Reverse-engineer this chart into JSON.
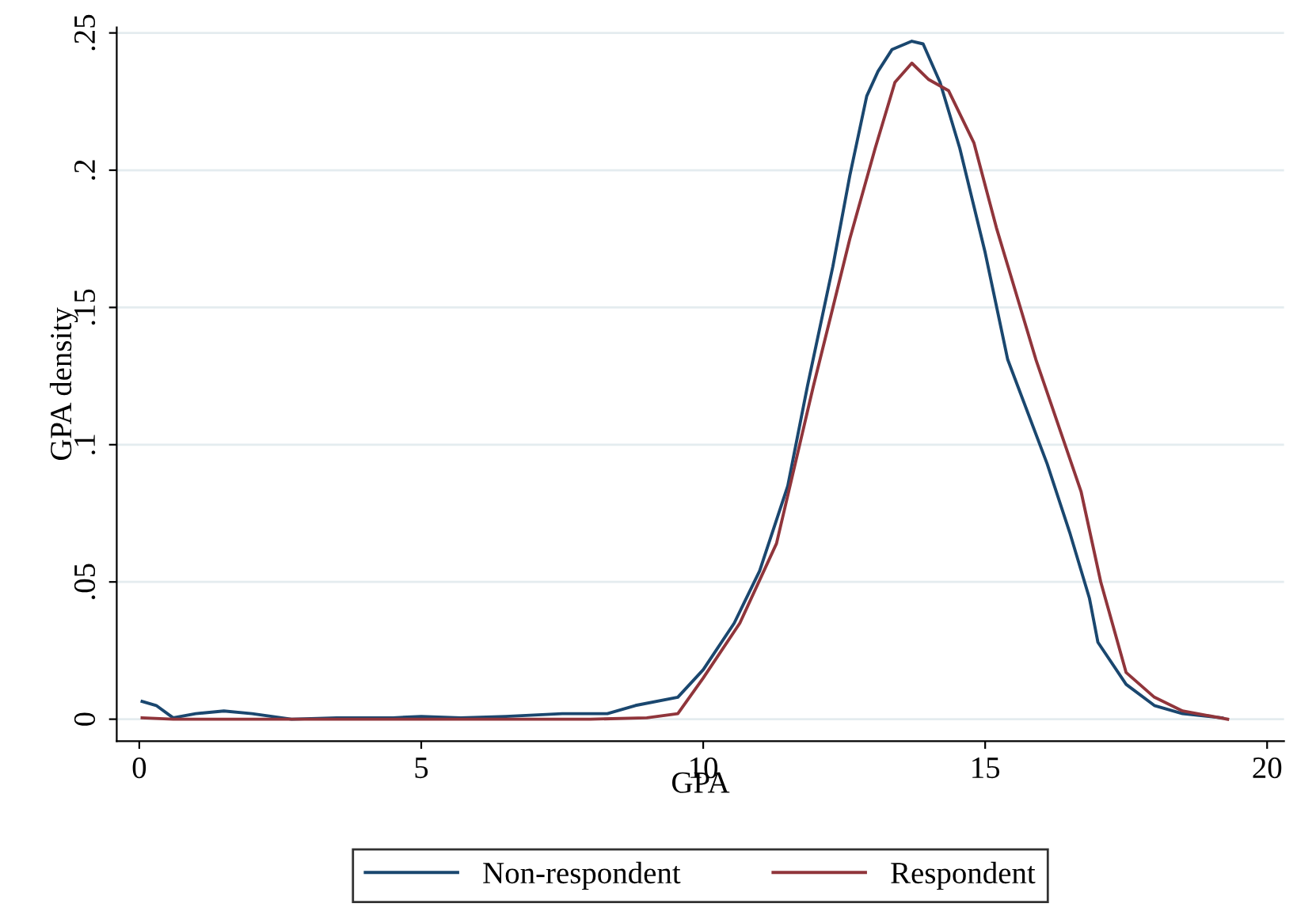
{
  "chart_data": {
    "type": "line",
    "xlabel": "GPA",
    "ylabel": "GPA density",
    "xlim": [
      -0.4,
      20.3
    ],
    "ylim": [
      -0.008,
      0.252
    ],
    "xticks": [
      0,
      5,
      10,
      15,
      20
    ],
    "yticks": [
      0,
      {
        "value": 0.05,
        "label": ".05"
      },
      {
        "value": 0.1,
        "label": ".1"
      },
      {
        "value": 0.15,
        "label": ".15"
      },
      {
        "value": 0.2,
        "label": ".2"
      },
      {
        "value": 0.25,
        "label": ".25"
      }
    ],
    "grid": "y",
    "legend": "bottom",
    "line_style": "solid",
    "marker": "none",
    "series": [
      {
        "name": "Non-respondent",
        "color": "#1a476f",
        "x": [
          0.05,
          0.3,
          0.6,
          1.0,
          1.5,
          2.0,
          2.7,
          3.5,
          4.5,
          5.0,
          5.7,
          6.5,
          7.5,
          8.3,
          8.8,
          9.55,
          10.0,
          10.55,
          11.0,
          11.5,
          11.85,
          12.3,
          12.6,
          12.9,
          13.1,
          13.35,
          13.7,
          13.9,
          14.2,
          14.55,
          15.0,
          15.4,
          16.1,
          16.5,
          16.85,
          17.0,
          17.5,
          18.0,
          18.5,
          19.2
        ],
        "values": [
          0.0065,
          0.005,
          0.0005,
          0.002,
          0.003,
          0.002,
          0.0,
          0.0005,
          0.0005,
          0.001,
          0.0005,
          0.001,
          0.002,
          0.002,
          0.005,
          0.008,
          0.018,
          0.035,
          0.054,
          0.085,
          0.1215,
          0.165,
          0.198,
          0.227,
          0.236,
          0.244,
          0.247,
          0.246,
          0.232,
          0.208,
          0.17,
          0.131,
          0.093,
          0.068,
          0.044,
          0.028,
          0.0127,
          0.005,
          0.002,
          0.0005
        ]
      },
      {
        "name": "Respondent",
        "color": "#90353b",
        "x": [
          0.05,
          0.6,
          2.0,
          4.0,
          6.0,
          8.0,
          9.0,
          9.55,
          10.0,
          10.65,
          11.3,
          11.95,
          12.3,
          12.6,
          13.05,
          13.4,
          13.7,
          14.0,
          14.35,
          14.8,
          15.2,
          15.9,
          16.7,
          17.05,
          17.5,
          18.0,
          18.5,
          19.3
        ],
        "values": [
          0.0005,
          0.0,
          0.0,
          0.0,
          0.0,
          0.0,
          0.0005,
          0.002,
          0.015,
          0.035,
          0.064,
          0.121,
          0.15,
          0.175,
          0.208,
          0.232,
          0.239,
          0.233,
          0.229,
          0.21,
          0.179,
          0.131,
          0.083,
          0.05,
          0.017,
          0.008,
          0.003,
          0.0
        ]
      }
    ]
  }
}
